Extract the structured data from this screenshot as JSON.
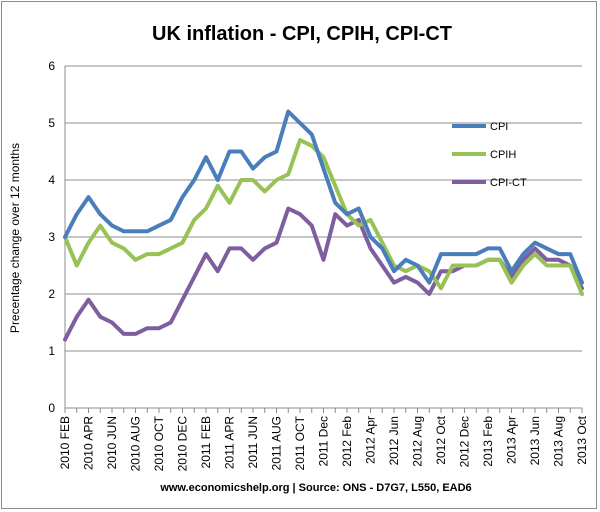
{
  "chart_data": {
    "type": "line",
    "title": "UK inflation - CPI, CPIH, CPI-CT",
    "ylabel": "Precentage change over 12 months",
    "xlabel": "",
    "source": "www.economicshelp.org | Source: ONS - D7G7, L550, EAD6",
    "ylim": [
      0,
      6
    ],
    "yticks": [
      "0",
      "1",
      "2",
      "3",
      "4",
      "5",
      "6"
    ],
    "grid": "horizontal",
    "legend_position": "right",
    "x_tick_labels": [
      "2010 FEB",
      "2010 APR",
      "2010 JUN",
      "2010 AUG",
      "2010 OCT",
      "2010 DEC",
      "2011 FEB",
      "2011 APR",
      "2011 JUN",
      "2011 AUG",
      "2011 OCT",
      "2011 Dec",
      "2012 Feb",
      "2012 Apr",
      "2012 Jun",
      "2012 Aug",
      "2012 Oct",
      "2012 Dec",
      "2013 Feb",
      "2013 Apr",
      "2013 Jun",
      "2013 Aug",
      "2013 Oct"
    ],
    "series": [
      {
        "name": "CPI",
        "color": "#4a7ebb",
        "values": [
          3.0,
          3.4,
          3.7,
          3.4,
          3.2,
          3.1,
          3.1,
          3.1,
          3.2,
          3.3,
          3.7,
          4.0,
          4.4,
          4.0,
          4.5,
          4.5,
          4.2,
          4.4,
          4.5,
          5.2,
          5.0,
          4.8,
          4.2,
          3.6,
          3.4,
          3.5,
          3.0,
          2.8,
          2.4,
          2.6,
          2.5,
          2.2,
          2.7,
          2.7,
          2.7,
          2.7,
          2.8,
          2.8,
          2.4,
          2.7,
          2.9,
          2.8,
          2.7,
          2.7,
          2.2
        ]
      },
      {
        "name": "CPIH",
        "color": "#98c256",
        "values": [
          3.0,
          2.5,
          2.9,
          3.2,
          2.9,
          2.8,
          2.6,
          2.7,
          2.7,
          2.8,
          2.9,
          3.3,
          3.5,
          3.9,
          3.6,
          4.0,
          4.0,
          3.8,
          4.0,
          4.1,
          4.7,
          4.6,
          4.4,
          3.9,
          3.4,
          3.2,
          3.3,
          2.9,
          2.5,
          2.4,
          2.5,
          2.4,
          2.1,
          2.5,
          2.5,
          2.5,
          2.6,
          2.6,
          2.2,
          2.5,
          2.7,
          2.5,
          2.5,
          2.5,
          2.0
        ]
      },
      {
        "name": "CPI-CT",
        "color": "#7d5fa0",
        "values": [
          1.2,
          1.6,
          1.9,
          1.6,
          1.5,
          1.3,
          1.3,
          1.4,
          1.4,
          1.5,
          1.9,
          2.3,
          2.7,
          2.4,
          2.8,
          2.8,
          2.6,
          2.8,
          2.9,
          3.5,
          3.4,
          3.2,
          2.6,
          3.4,
          3.2,
          3.3,
          2.8,
          2.5,
          2.2,
          2.3,
          2.2,
          2.0,
          2.4,
          2.4,
          2.5,
          2.5,
          2.6,
          2.6,
          2.3,
          2.6,
          2.8,
          2.6,
          2.6,
          2.5,
          2.1
        ]
      }
    ]
  }
}
